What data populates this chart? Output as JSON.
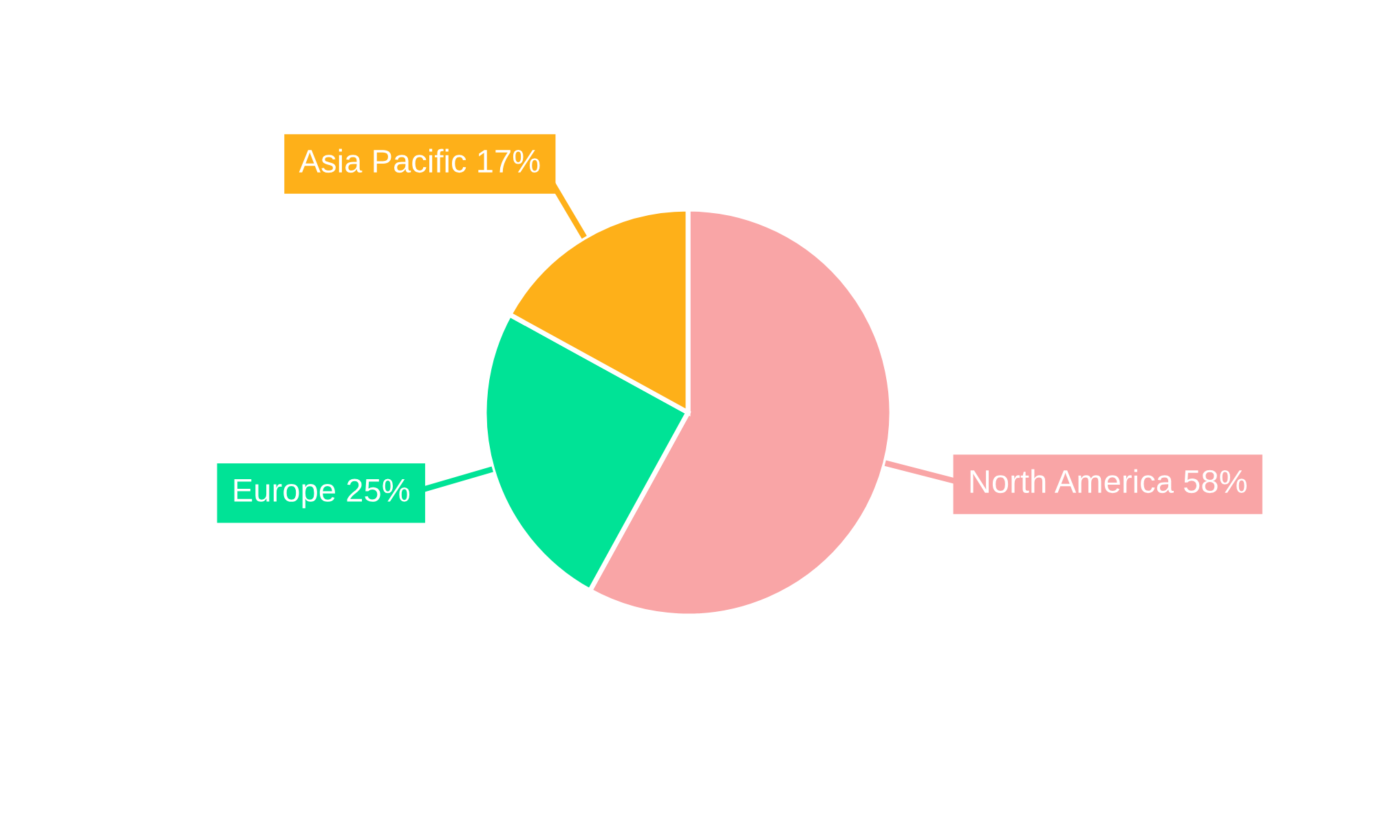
{
  "chart_data": {
    "type": "pie",
    "categories": [
      "North America",
      "Europe",
      "Asia Pacific"
    ],
    "values": [
      58,
      25,
      17
    ],
    "colors": [
      "#f9a5a6",
      "#00e396",
      "#feb019"
    ],
    "value_labels": [
      "58%",
      "25%",
      "17%"
    ],
    "legend": false
  }
}
